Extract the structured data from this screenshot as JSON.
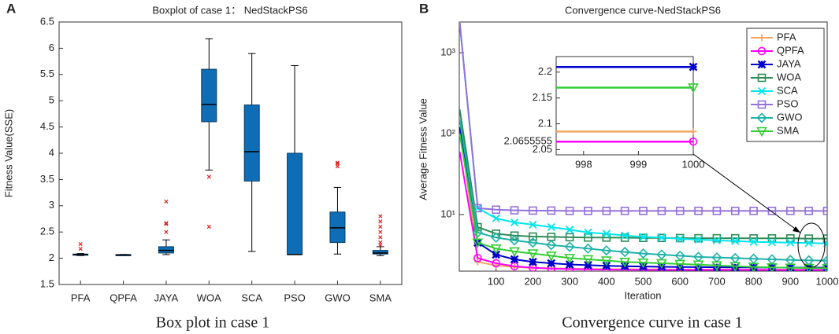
{
  "chart_data": [
    {
      "type": "box",
      "panel": "A",
      "title": "Boxplot of case 1： NedStackPS6",
      "ylabel": "Fitness Value(SSE)",
      "caption": "Box plot in case 1",
      "color": "#0f6db5",
      "outlier_color": "#e02020",
      "grid": false,
      "categories": [
        "PFA",
        "QPFA",
        "JAYA",
        "WOA",
        "SCA",
        "PSO",
        "GWO",
        "SMA"
      ],
      "boxes": [
        {
          "whisker_low": 2.05,
          "q1": 2.06,
          "median": 2.07,
          "q3": 2.08,
          "whisker_high": 2.09,
          "outliers": [
            2.27,
            2.18
          ]
        },
        {
          "whisker_low": 2.06,
          "q1": 2.062,
          "median": 2.066,
          "q3": 2.07,
          "whisker_high": 2.072,
          "outliers": []
        },
        {
          "whisker_low": 2.07,
          "q1": 2.1,
          "median": 2.15,
          "q3": 2.22,
          "whisker_high": 2.35,
          "outliers": [
            2.5,
            2.65,
            2.67,
            3.08
          ]
        },
        {
          "whisker_low": 3.68,
          "q1": 4.6,
          "median": 4.93,
          "q3": 5.6,
          "whisker_high": 6.18,
          "outliers": [
            3.55,
            2.6
          ]
        },
        {
          "whisker_low": 2.13,
          "q1": 3.47,
          "median": 4.03,
          "q3": 4.92,
          "whisker_high": 5.9,
          "outliers": []
        },
        {
          "whisker_low": 2.07,
          "q1": 2.07,
          "median": 2.07,
          "q3": 4.0,
          "whisker_high": 5.67,
          "outliers": []
        },
        {
          "whisker_low": 2.08,
          "q1": 2.3,
          "median": 2.58,
          "q3": 2.88,
          "whisker_high": 3.35,
          "outliers": [
            3.75,
            3.8,
            3.82
          ]
        },
        {
          "whisker_low": 2.05,
          "q1": 2.08,
          "median": 2.1,
          "q3": 2.15,
          "whisker_high": 2.22,
          "outliers": [
            2.25,
            2.3,
            2.4,
            2.5,
            2.6,
            2.7,
            2.8
          ]
        }
      ],
      "ylim": [
        1.5,
        6.5
      ],
      "yticks": [
        1.5,
        2,
        2.5,
        3,
        3.5,
        4,
        4.5,
        5,
        5.5,
        6,
        6.5
      ]
    },
    {
      "type": "line",
      "panel": "B",
      "title": "Convergence curve-NedStackPS6",
      "xlabel": "Iteration",
      "ylabel": "Average Fitness Value",
      "caption": "Convergence curve in case 1",
      "log_y": true,
      "grid": false,
      "legend": "upper right",
      "x": [
        1,
        50,
        100,
        150,
        200,
        250,
        300,
        350,
        400,
        450,
        500,
        550,
        600,
        650,
        700,
        750,
        800,
        850,
        900,
        950,
        1000
      ],
      "xlim": [
        0,
        1000
      ],
      "xticks": [
        100,
        200,
        300,
        400,
        500,
        600,
        700,
        800,
        900,
        1000
      ],
      "ylim": [
        2,
        2400
      ],
      "yticks": [
        {
          "value": 10,
          "label": "10¹"
        },
        {
          "value": 100,
          "label": "10²"
        },
        {
          "value": 1000,
          "label": "10³"
        }
      ],
      "series": [
        {
          "name": "PFA",
          "color": "#f4a460",
          "marker": "plus",
          "values": [
            130,
            2.6,
            2.35,
            2.25,
            2.2,
            2.17,
            2.15,
            2.13,
            2.12,
            2.11,
            2.1,
            2.1,
            2.09,
            2.09,
            2.09,
            2.09,
            2.09,
            2.088,
            2.086,
            2.085,
            2.085
          ],
          "inset_values": [
            2.085,
            2.085
          ]
        },
        {
          "name": "QPFA",
          "color": "#ff00ff",
          "marker": "circle",
          "values": [
            60,
            2.9,
            2.5,
            2.3,
            2.2,
            2.15,
            2.12,
            2.1,
            2.09,
            2.08,
            2.075,
            2.07,
            2.07,
            2.068,
            2.067,
            2.066,
            2.066,
            2.066,
            2.066,
            2.066,
            2.0655555
          ],
          "inset_values": [
            2.0655555,
            2.0655555
          ]
        },
        {
          "name": "JAYA",
          "color": "#0000cd",
          "marker": "star",
          "values": [
            120,
            4.5,
            3.2,
            2.8,
            2.6,
            2.5,
            2.42,
            2.37,
            2.33,
            2.3,
            2.28,
            2.26,
            2.25,
            2.24,
            2.23,
            2.22,
            2.22,
            2.21,
            2.21,
            2.21,
            2.21
          ],
          "inset_values": [
            2.21,
            2.21
          ]
        },
        {
          "name": "WOA",
          "color": "#2e8b57",
          "marker": "square",
          "values": [
            200,
            7,
            5.8,
            5.5,
            5.35,
            5.3,
            5.25,
            5.2,
            5.2,
            5.18,
            5.15,
            5.15,
            5.12,
            5.1,
            5.1,
            5.1,
            5.08,
            5.08,
            5.08,
            5.05,
            5.05
          ]
        },
        {
          "name": "SCA",
          "color": "#00e5ee",
          "marker": "cross",
          "values": [
            2400,
            12,
            9,
            8,
            7.5,
            7,
            6.5,
            6,
            5.8,
            5.5,
            5.3,
            5.2,
            5,
            4.9,
            4.8,
            4.7,
            4.6,
            4.55,
            4.5,
            4.45,
            4.4
          ]
        },
        {
          "name": "PSO",
          "color": "#9370db",
          "marker": "square",
          "values": [
            2400,
            12,
            11.5,
            11.3,
            11.2,
            11.2,
            11.1,
            11.1,
            11.1,
            11.1,
            11.1,
            11.1,
            11.1,
            11.1,
            11.1,
            11.1,
            11.1,
            11.1,
            11.1,
            11.1,
            11.1
          ]
        },
        {
          "name": "GWO",
          "color": "#20b2aa",
          "marker": "diamond",
          "values": [
            150,
            6,
            5.2,
            4.8,
            4.5,
            4.2,
            4,
            3.8,
            3.6,
            3.45,
            3.3,
            3.2,
            3.1,
            3.0,
            2.95,
            2.9,
            2.85,
            2.8,
            2.75,
            2.72,
            2.7
          ]
        },
        {
          "name": "SMA",
          "color": "#32cd32",
          "marker": "triangle",
          "values": [
            100,
            4.5,
            3.8,
            3.5,
            3.3,
            3.1,
            2.9,
            2.8,
            2.7,
            2.6,
            2.55,
            2.5,
            2.45,
            2.4,
            2.35,
            2.3,
            2.25,
            2.22,
            2.2,
            2.18,
            2.17
          ],
          "inset_values": [
            2.17,
            2.17
          ]
        }
      ],
      "inset": {
        "x": [
          997.5,
          1000
        ],
        "xlim": [
          997.5,
          1000
        ],
        "ylim": [
          2.04,
          2.23
        ],
        "xticks": [
          998,
          999,
          1000
        ],
        "yticks": [
          2.05,
          2.0655555,
          2.1,
          2.15,
          2.2
        ]
      }
    }
  ]
}
